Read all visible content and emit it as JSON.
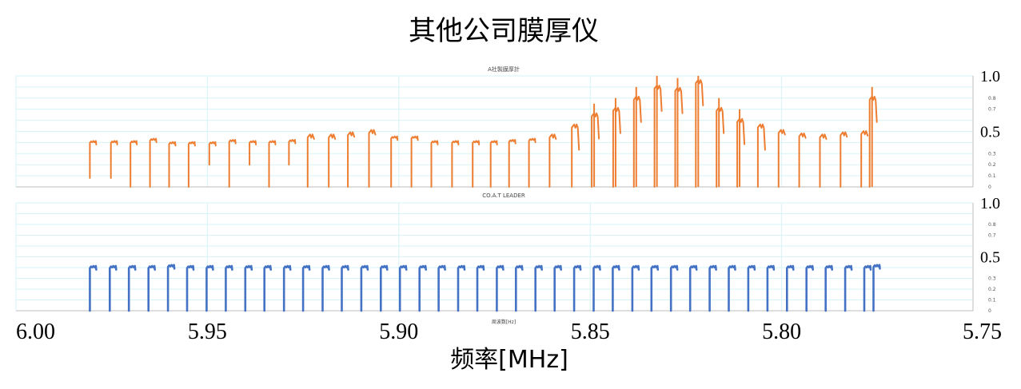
{
  "title": "其他公司膜厚仪",
  "xlabel": "频率[MHz]",
  "x_ticks": [
    "6.00",
    "5.95",
    "5.90",
    "5.85",
    "5.80",
    "5.75"
  ],
  "colors": {
    "top_series": "#ed7d31",
    "bottom_series": "#4472c4",
    "grid": "#d6f3f7",
    "axis": "#bdbdbd"
  },
  "chart_data": [
    {
      "type": "line",
      "title": "A社製膜厚計",
      "xlabel": "周波数[Hz]",
      "series": [
        {
          "values_description": "",
          "color": "#ed7d31",
          "x": [
            5.9807,
            5.9752,
            5.9701,
            5.965,
            5.96,
            5.9549,
            5.9495,
            5.9443,
            5.939,
            5.9339,
            5.9287,
            5.9238,
            5.9183,
            5.9133,
            5.9078,
            5.902,
            5.8967,
            5.8915,
            5.8861,
            5.8807,
            5.876,
            5.8712,
            5.866,
            5.8606,
            5.8548,
            5.8496,
            5.844,
            5.8386,
            5.8332,
            5.8278,
            5.8224,
            5.817,
            5.8116,
            5.8062,
            5.8008,
            5.7954,
            5.79,
            5.7846,
            5.7792,
            5.777
          ],
          "y": [
            0.41,
            0.41,
            0.41,
            0.43,
            0.4,
            0.4,
            0.4,
            0.42,
            0.41,
            0.41,
            0.42,
            0.46,
            0.46,
            0.48,
            0.5,
            0.45,
            0.45,
            0.41,
            0.41,
            0.41,
            0.41,
            0.42,
            0.43,
            0.46,
            0.55,
            0.65,
            0.7,
            0.8,
            0.9,
            0.88,
            0.95,
            0.7,
            0.6,
            0.55,
            0.5,
            0.47,
            0.46,
            0.48,
            0.49,
            0.8
          ],
          "drop": [
            0.08,
            0.08,
            0.0,
            0.0,
            0.0,
            0.0,
            0.2,
            0.0,
            0.2,
            0.0,
            0.2,
            0.0,
            0.0,
            0.0,
            0.0,
            0.0,
            0.0,
            0.0,
            0.0,
            0.0,
            0.0,
            0.0,
            0.0,
            0.0,
            0.0,
            0.0,
            0.0,
            0.0,
            0.0,
            0.0,
            0.0,
            0.0,
            0.0,
            0.0,
            0.0,
            0.0,
            0.0,
            0.0,
            0.0,
            0.0
          ]
        }
      ],
      "xlim": [
        6.0,
        5.75
      ],
      "ylim": [
        0,
        1.0
      ],
      "y_major_ticks": [
        "1.0",
        "0.5"
      ],
      "y_minor_ticks": [
        "0.8",
        "0.7",
        "0.3",
        "0.2",
        "0.1",
        "0"
      ],
      "grid": true
    },
    {
      "type": "line",
      "title": "CO.A.T LEADER",
      "xlabel": "",
      "series": [
        {
          "color": "#4472c4",
          "x": [
            5.9807,
            5.9755,
            5.9705,
            5.9654,
            5.9603,
            5.9553,
            5.9502,
            5.9452,
            5.9401,
            5.9351,
            5.93,
            5.925,
            5.9199,
            5.9149,
            5.9098,
            5.9047,
            5.8997,
            5.8946,
            5.8896,
            5.8845,
            5.8795,
            5.8744,
            5.8694,
            5.8643,
            5.8593,
            5.8542,
            5.8491,
            5.8441,
            5.839,
            5.834,
            5.8289,
            5.8239,
            5.8188,
            5.8138,
            5.8087,
            5.8037,
            5.7986,
            5.7935,
            5.7885,
            5.7834,
            5.7784,
            5.776
          ],
          "y": [
            0.41,
            0.41,
            0.41,
            0.41,
            0.42,
            0.41,
            0.41,
            0.41,
            0.41,
            0.41,
            0.41,
            0.41,
            0.41,
            0.41,
            0.41,
            0.41,
            0.41,
            0.41,
            0.41,
            0.41,
            0.41,
            0.41,
            0.41,
            0.41,
            0.41,
            0.41,
            0.41,
            0.41,
            0.41,
            0.41,
            0.41,
            0.41,
            0.41,
            0.41,
            0.41,
            0.41,
            0.41,
            0.41,
            0.41,
            0.41,
            0.41,
            0.42
          ]
        }
      ],
      "xlim": [
        6.0,
        5.75
      ],
      "ylim": [
        0,
        1.0
      ],
      "y_major_ticks": [
        "1.0",
        "0.5"
      ],
      "y_minor_ticks": [
        "0.8",
        "0.7",
        "0.3",
        "0.2",
        "0.1",
        "0"
      ],
      "grid": true
    }
  ]
}
